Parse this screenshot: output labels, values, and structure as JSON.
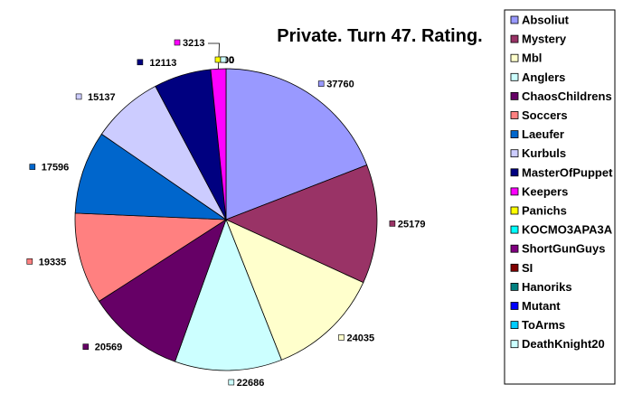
{
  "chart_data": {
    "type": "pie",
    "title": "Private. Turn 47. Rating.",
    "legend_position": "right",
    "slices": [
      {
        "name": "Absoliut",
        "value": 37760,
        "color": "#9999ff",
        "label": "37760"
      },
      {
        "name": "Mystery",
        "value": 25179,
        "color": "#993366",
        "label": "25179"
      },
      {
        "name": "Mbl",
        "value": 24035,
        "color": "#ffffcc",
        "label": "24035"
      },
      {
        "name": "Anglers",
        "value": 22686,
        "color": "#ccffff",
        "label": "22686"
      },
      {
        "name": "ChaosChildrens",
        "value": 20569,
        "color": "#660066",
        "label": "20569"
      },
      {
        "name": "Soccers",
        "value": 19335,
        "color": "#ff8080",
        "label": "19335"
      },
      {
        "name": "Laeufer",
        "value": 17596,
        "color": "#0066cc",
        "label": "17596"
      },
      {
        "name": "Kurbuls",
        "value": 15137,
        "color": "#ccccff",
        "label": "15137"
      },
      {
        "name": "MasterOfPuppet",
        "value": 12113,
        "color": "#000080",
        "label": "12113"
      },
      {
        "name": "Keepers",
        "value": 3213,
        "color": "#ff00ff",
        "label": "3213"
      },
      {
        "name": "Panichs",
        "value": 0,
        "color": "#ffff00",
        "label": "0"
      },
      {
        "name": "KOCMO3APA3A",
        "value": 0,
        "color": "#00ffff",
        "label": "0"
      },
      {
        "name": "ShortGunGuys",
        "value": 0,
        "color": "#800080",
        "label": "0"
      },
      {
        "name": "SI",
        "value": 0,
        "color": "#800000",
        "label": "0"
      },
      {
        "name": "Hanoriks",
        "value": 0,
        "color": "#008080",
        "label": "0"
      },
      {
        "name": "Mutant",
        "value": 0,
        "color": "#0000ff",
        "label": "0"
      },
      {
        "name": "ToArms",
        "value": 0,
        "color": "#00ccff",
        "label": "0"
      },
      {
        "name": "DeathKnight20",
        "value": 0,
        "color": "#ccffff",
        "label": "0"
      }
    ]
  }
}
